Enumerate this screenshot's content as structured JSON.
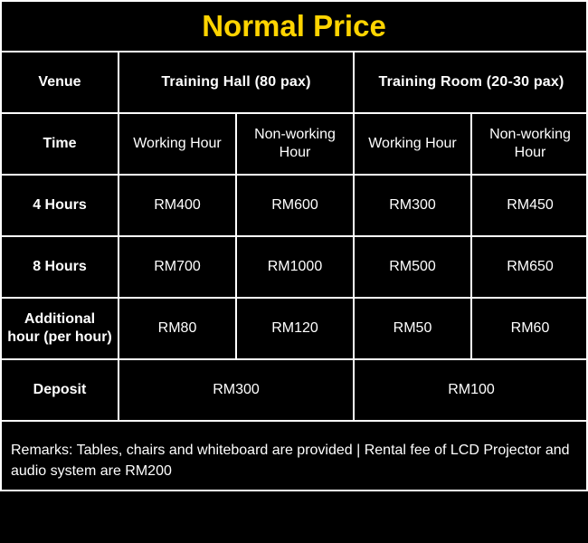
{
  "title": "Normal Price",
  "table": {
    "venue_label": "Venue",
    "venues": [
      "Training Hall (80 pax)",
      "Training Room (20-30 pax)"
    ],
    "time_label": "Time",
    "time_options": [
      "Working Hour",
      "Non-working Hour",
      "Working Hour",
      "Non-working Hour"
    ],
    "rows": [
      {
        "label": "4 Hours",
        "values": [
          "RM400",
          "RM600",
          "RM300",
          "RM450"
        ]
      },
      {
        "label": "8 Hours",
        "values": [
          "RM700",
          "RM1000",
          "RM500",
          "RM650"
        ]
      },
      {
        "label": "Additional hour (per hour)",
        "values": [
          "RM80",
          "RM120",
          "RM50",
          "RM60"
        ]
      }
    ],
    "deposit_label": "Deposit",
    "deposits": [
      "RM300",
      "RM100"
    ]
  },
  "remarks": "Remarks: Tables, chairs and whiteboard are provided | Rental fee of LCD Projector and audio system are RM200",
  "colors": {
    "title": "#ffd400",
    "background": "#000000",
    "text": "#ffffff",
    "border": "#ffffff"
  }
}
